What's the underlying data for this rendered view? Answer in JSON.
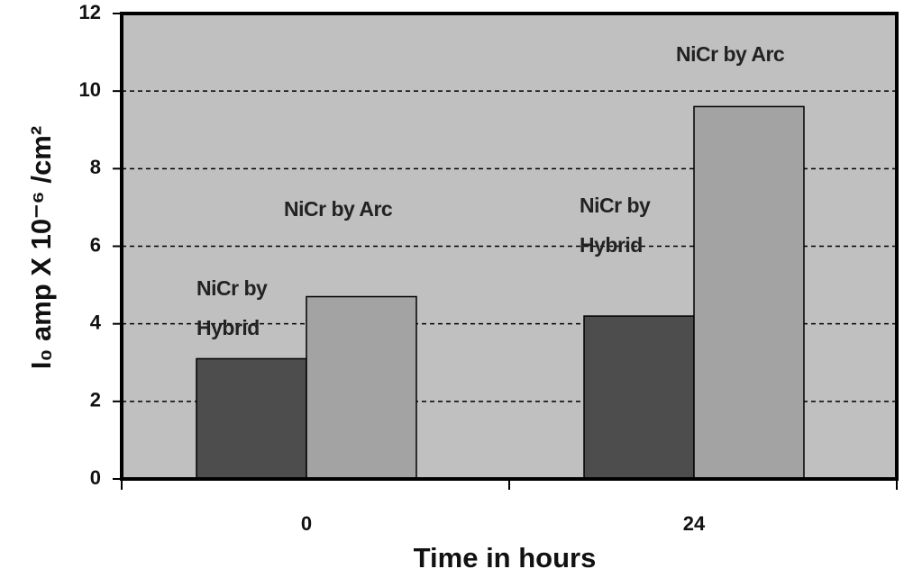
{
  "chart_data": {
    "type": "bar",
    "categories": [
      "0",
      "24"
    ],
    "series": [
      {
        "name": "NiCr by Hybrid",
        "color": "#4d4d4d",
        "values": [
          3.1,
          4.2
        ]
      },
      {
        "name": "NiCr by Arc",
        "color": "#a3a3a3",
        "values": [
          4.7,
          9.6
        ]
      }
    ],
    "x_label": "Time in hours",
    "y_label": "I₀ amp X 10⁻⁶ /cm²",
    "ylim": [
      0,
      12
    ],
    "yticks": [
      0,
      2,
      4,
      6,
      8,
      10,
      12
    ],
    "grid": true
  }
}
